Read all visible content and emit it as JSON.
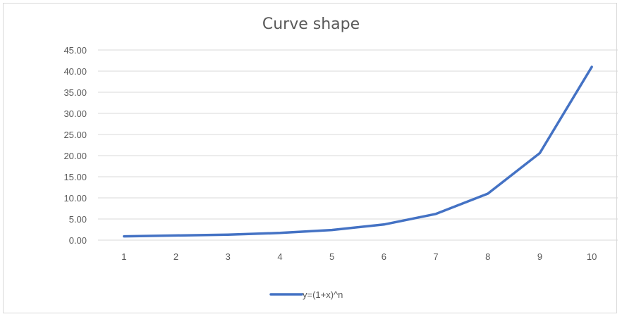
{
  "chart_data": {
    "type": "line",
    "title": "Curve shape",
    "xlabel": "",
    "ylabel": "",
    "categories": [
      "1",
      "2",
      "3",
      "4",
      "5",
      "6",
      "7",
      "8",
      "9",
      "10"
    ],
    "ylim": [
      0,
      45
    ],
    "ytick_labels": [
      "0.00",
      "5.00",
      "10.00",
      "15.00",
      "20.00",
      "25.00",
      "30.00",
      "35.00",
      "40.00",
      "45.00"
    ],
    "grid": true,
    "legend_position": "bottom",
    "series": [
      {
        "name": "y=(1+x)^n",
        "color": "#4472c4",
        "values": [
          0.9,
          1.1,
          1.3,
          1.7,
          2.4,
          3.7,
          6.2,
          11.0,
          20.6,
          41.0
        ]
      }
    ]
  }
}
